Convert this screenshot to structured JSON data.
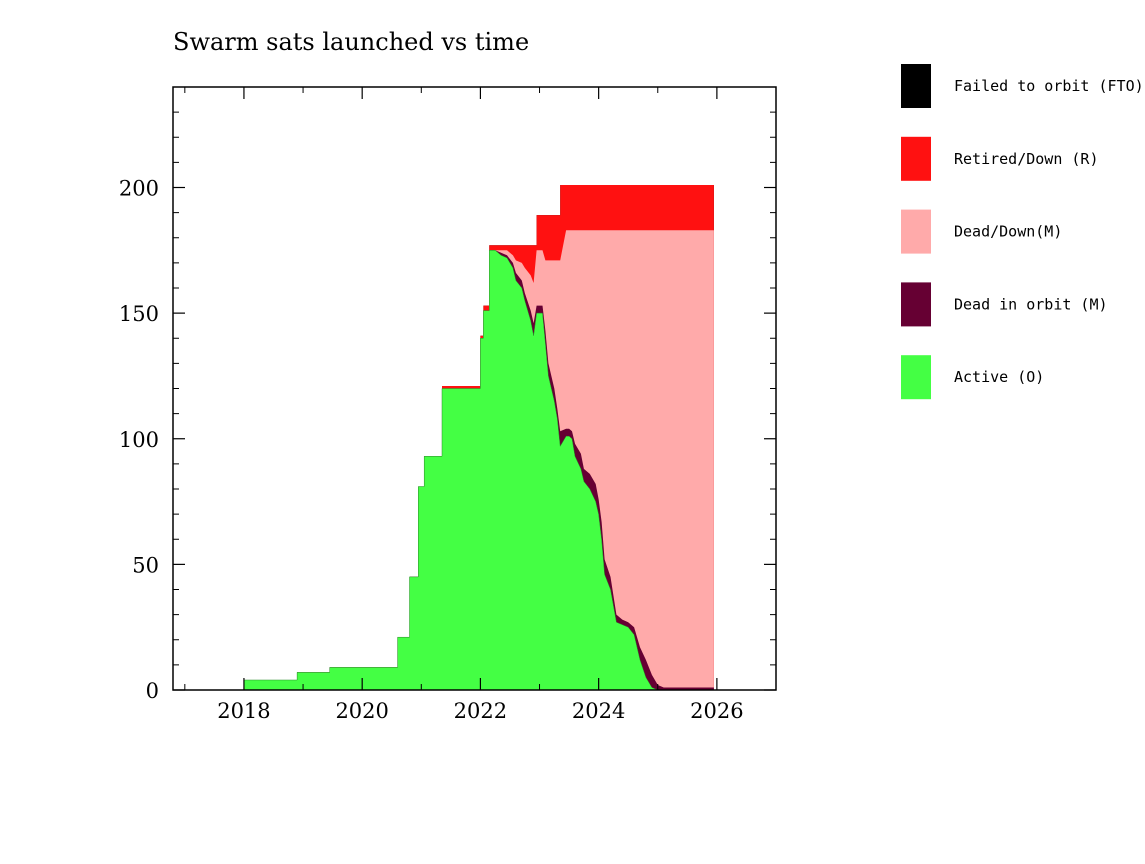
{
  "chart_data": {
    "type": "area",
    "title": "Swarm sats launched vs time",
    "xlabel": "",
    "ylabel": "",
    "xlim": [
      2016.8,
      2027.0
    ],
    "ylim": [
      0,
      240
    ],
    "x_ticks": [
      2018,
      2020,
      2022,
      2024,
      2026
    ],
    "y_ticks": [
      0,
      50,
      100,
      150,
      200
    ],
    "grid": false,
    "legend_position": "right",
    "series": [
      {
        "name": "Active (O)",
        "color": "#44ff44",
        "points": [
          [
            2017.0,
            0
          ],
          [
            2018.0,
            0
          ],
          [
            2018.0,
            4
          ],
          [
            2018.9,
            4
          ],
          [
            2018.9,
            7
          ],
          [
            2019.45,
            7
          ],
          [
            2019.45,
            9
          ],
          [
            2020.6,
            9
          ],
          [
            2020.6,
            21
          ],
          [
            2020.8,
            21
          ],
          [
            2020.8,
            45
          ],
          [
            2020.95,
            45
          ],
          [
            2020.95,
            81
          ],
          [
            2021.05,
            81
          ],
          [
            2021.05,
            93
          ],
          [
            2021.35,
            93
          ],
          [
            2021.35,
            120
          ],
          [
            2021.8,
            120
          ],
          [
            2021.8,
            120
          ],
          [
            2022.0,
            120
          ],
          [
            2022.0,
            140
          ],
          [
            2022.05,
            140
          ],
          [
            2022.05,
            151
          ],
          [
            2022.15,
            151
          ],
          [
            2022.15,
            175
          ],
          [
            2022.25,
            175
          ],
          [
            2022.35,
            173
          ],
          [
            2022.45,
            172
          ],
          [
            2022.55,
            168
          ],
          [
            2022.6,
            163
          ],
          [
            2022.7,
            160
          ],
          [
            2022.75,
            155
          ],
          [
            2022.85,
            147
          ],
          [
            2022.9,
            141
          ],
          [
            2022.95,
            150
          ],
          [
            2023.05,
            150
          ],
          [
            2023.1,
            138
          ],
          [
            2023.15,
            125
          ],
          [
            2023.25,
            115
          ],
          [
            2023.3,
            108
          ],
          [
            2023.35,
            97
          ],
          [
            2023.45,
            101
          ],
          [
            2023.5,
            101
          ],
          [
            2023.55,
            100
          ],
          [
            2023.6,
            93
          ],
          [
            2023.7,
            88
          ],
          [
            2023.75,
            83
          ],
          [
            2023.85,
            80
          ],
          [
            2023.95,
            75
          ],
          [
            2024.0,
            70
          ],
          [
            2024.05,
            60
          ],
          [
            2024.1,
            46
          ],
          [
            2024.2,
            40
          ],
          [
            2024.3,
            27
          ],
          [
            2024.4,
            26
          ],
          [
            2024.5,
            25
          ],
          [
            2024.6,
            22
          ],
          [
            2024.7,
            12
          ],
          [
            2024.8,
            5
          ],
          [
            2024.9,
            1
          ],
          [
            2025.0,
            0
          ],
          [
            2025.95,
            0
          ]
        ]
      },
      {
        "name": "Dead in orbit (M)",
        "color": "#660033",
        "points": [
          [
            2017.0,
            0
          ],
          [
            2018.0,
            0
          ],
          [
            2018.0,
            4
          ],
          [
            2018.9,
            4
          ],
          [
            2018.9,
            7
          ],
          [
            2019.45,
            7
          ],
          [
            2019.45,
            9
          ],
          [
            2020.6,
            9
          ],
          [
            2020.6,
            21
          ],
          [
            2020.8,
            21
          ],
          [
            2020.8,
            45
          ],
          [
            2020.95,
            45
          ],
          [
            2020.95,
            81
          ],
          [
            2021.05,
            81
          ],
          [
            2021.05,
            93
          ],
          [
            2021.35,
            93
          ],
          [
            2021.35,
            120
          ],
          [
            2021.8,
            120
          ],
          [
            2021.8,
            120
          ],
          [
            2022.0,
            120
          ],
          [
            2022.0,
            140
          ],
          [
            2022.05,
            140
          ],
          [
            2022.05,
            151
          ],
          [
            2022.15,
            151
          ],
          [
            2022.15,
            175
          ],
          [
            2022.25,
            175
          ],
          [
            2022.35,
            174
          ],
          [
            2022.45,
            173
          ],
          [
            2022.55,
            170
          ],
          [
            2022.6,
            166
          ],
          [
            2022.7,
            163
          ],
          [
            2022.75,
            158
          ],
          [
            2022.85,
            151
          ],
          [
            2022.9,
            146
          ],
          [
            2022.95,
            153
          ],
          [
            2023.05,
            153
          ],
          [
            2023.1,
            143
          ],
          [
            2023.15,
            130
          ],
          [
            2023.25,
            120
          ],
          [
            2023.3,
            112
          ],
          [
            2023.35,
            103
          ],
          [
            2023.45,
            104
          ],
          [
            2023.5,
            104
          ],
          [
            2023.55,
            103
          ],
          [
            2023.6,
            98
          ],
          [
            2023.7,
            94
          ],
          [
            2023.75,
            88
          ],
          [
            2023.85,
            86
          ],
          [
            2023.95,
            82
          ],
          [
            2024.0,
            76
          ],
          [
            2024.05,
            67
          ],
          [
            2024.1,
            52
          ],
          [
            2024.2,
            45
          ],
          [
            2024.3,
            30
          ],
          [
            2024.4,
            28
          ],
          [
            2024.5,
            27
          ],
          [
            2024.6,
            25
          ],
          [
            2024.7,
            17
          ],
          [
            2024.8,
            12
          ],
          [
            2024.9,
            6
          ],
          [
            2025.0,
            2
          ],
          [
            2025.1,
            1
          ],
          [
            2025.95,
            1
          ]
        ]
      },
      {
        "name": "Dead/Down(M)",
        "color": "#ffaaaa",
        "points": [
          [
            2017.0,
            0
          ],
          [
            2018.0,
            0
          ],
          [
            2018.0,
            4
          ],
          [
            2018.9,
            4
          ],
          [
            2018.9,
            7
          ],
          [
            2019.45,
            7
          ],
          [
            2019.45,
            9
          ],
          [
            2020.6,
            9
          ],
          [
            2020.6,
            21
          ],
          [
            2020.8,
            21
          ],
          [
            2020.8,
            45
          ],
          [
            2020.95,
            45
          ],
          [
            2020.95,
            81
          ],
          [
            2021.05,
            81
          ],
          [
            2021.05,
            93
          ],
          [
            2021.35,
            93
          ],
          [
            2021.35,
            120
          ],
          [
            2021.8,
            120
          ],
          [
            2021.8,
            120
          ],
          [
            2022.0,
            120
          ],
          [
            2022.0,
            140
          ],
          [
            2022.05,
            140
          ],
          [
            2022.05,
            151
          ],
          [
            2022.15,
            151
          ],
          [
            2022.15,
            175
          ],
          [
            2022.25,
            175
          ],
          [
            2022.35,
            175
          ],
          [
            2022.45,
            175
          ],
          [
            2022.55,
            173
          ],
          [
            2022.6,
            171
          ],
          [
            2022.7,
            170
          ],
          [
            2022.75,
            168
          ],
          [
            2022.85,
            165
          ],
          [
            2022.9,
            162
          ],
          [
            2022.95,
            175
          ],
          [
            2023.05,
            175
          ],
          [
            2023.1,
            171
          ],
          [
            2023.2,
            171
          ],
          [
            2023.35,
            171
          ],
          [
            2023.45,
            183
          ],
          [
            2023.5,
            183
          ],
          [
            2025.95,
            183
          ]
        ]
      },
      {
        "name": "Retired/Down (R)",
        "color": "#ff1111",
        "points": [
          [
            2017.0,
            0
          ],
          [
            2018.0,
            0
          ],
          [
            2018.0,
            4
          ],
          [
            2018.9,
            4
          ],
          [
            2018.9,
            7
          ],
          [
            2019.45,
            7
          ],
          [
            2019.45,
            9
          ],
          [
            2020.6,
            9
          ],
          [
            2020.6,
            21
          ],
          [
            2020.8,
            21
          ],
          [
            2020.8,
            45
          ],
          [
            2020.95,
            45
          ],
          [
            2020.95,
            81
          ],
          [
            2021.05,
            81
          ],
          [
            2021.05,
            93
          ],
          [
            2021.2,
            93
          ],
          [
            2021.2,
            93
          ],
          [
            2021.35,
            93
          ],
          [
            2021.35,
            121
          ],
          [
            2022.0,
            121
          ],
          [
            2022.0,
            141
          ],
          [
            2022.05,
            141
          ],
          [
            2022.05,
            153
          ],
          [
            2022.15,
            153
          ],
          [
            2022.15,
            177
          ],
          [
            2022.95,
            177
          ],
          [
            2022.95,
            189
          ],
          [
            2023.35,
            189
          ],
          [
            2023.35,
            201
          ],
          [
            2025.95,
            201
          ]
        ]
      },
      {
        "name": "Failed to orbit (FTO)",
        "color": "#000000",
        "points": [
          [
            2017.0,
            0
          ],
          [
            2018.0,
            0
          ],
          [
            2018.0,
            4
          ],
          [
            2018.9,
            4
          ],
          [
            2018.9,
            7
          ],
          [
            2019.45,
            7
          ],
          [
            2019.45,
            9
          ],
          [
            2020.6,
            9
          ],
          [
            2020.6,
            21
          ],
          [
            2020.8,
            21
          ],
          [
            2020.8,
            45
          ],
          [
            2020.95,
            45
          ],
          [
            2020.95,
            81
          ],
          [
            2021.05,
            81
          ],
          [
            2021.05,
            93
          ],
          [
            2021.35,
            93
          ],
          [
            2021.35,
            121
          ],
          [
            2022.0,
            121
          ],
          [
            2022.0,
            141
          ],
          [
            2022.05,
            141
          ],
          [
            2022.05,
            153
          ],
          [
            2022.15,
            153
          ],
          [
            2022.15,
            177
          ],
          [
            2022.95,
            177
          ],
          [
            2022.95,
            189
          ],
          [
            2023.35,
            189
          ],
          [
            2023.35,
            201
          ],
          [
            2025.95,
            201
          ]
        ]
      }
    ],
    "legend_entries": [
      "Failed to orbit (FTO)",
      "Retired/Down (R)",
      "Dead/Down(M)",
      "Dead in orbit (M)",
      "Active (O)"
    ]
  }
}
